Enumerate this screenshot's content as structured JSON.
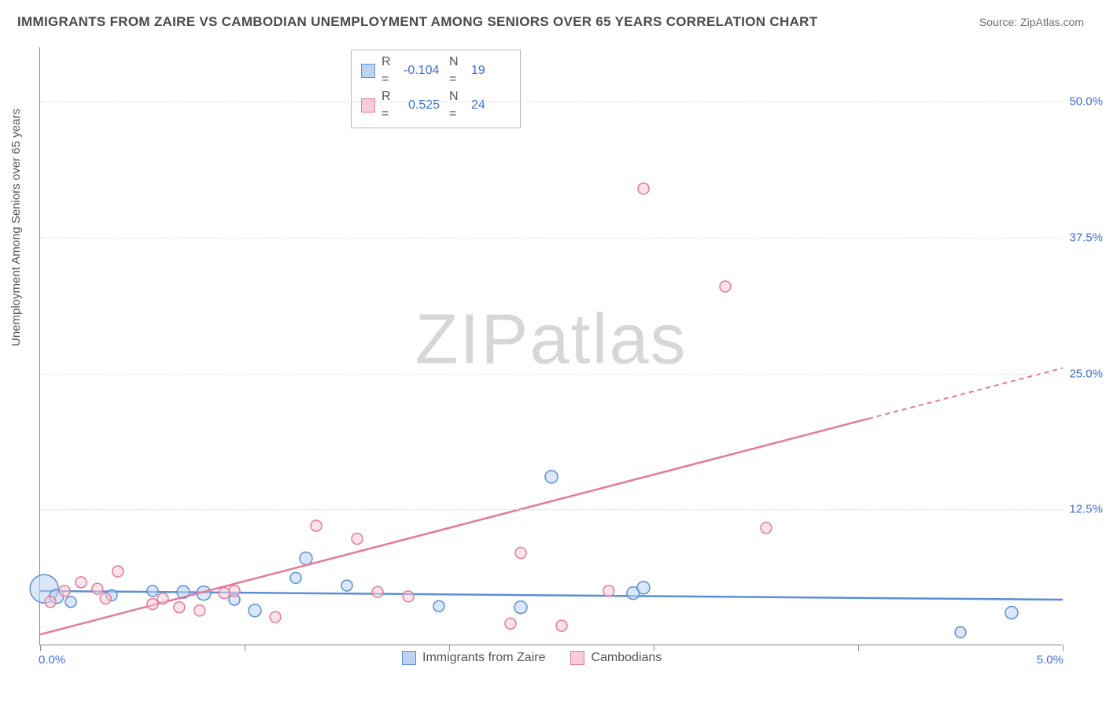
{
  "title": "IMMIGRANTS FROM ZAIRE VS CAMBODIAN UNEMPLOYMENT AMONG SENIORS OVER 65 YEARS CORRELATION CHART",
  "source": "Source: ZipAtlas.com",
  "ylabel": "Unemployment Among Seniors over 65 years",
  "watermark_a": "ZIP",
  "watermark_b": "atlas",
  "watermark_color": "#d7d7d7",
  "chart": {
    "type": "scatter",
    "background_color": "#ffffff",
    "grid_color": "#dcdcdc",
    "axis_color": "#888888",
    "text_color": "#555555",
    "value_color": "#3b6fd6",
    "x_range": [
      0.0,
      5.0
    ],
    "y_range": [
      0.0,
      55.0
    ],
    "x_ticks": [
      0.0,
      1.0,
      2.0,
      3.0,
      4.0,
      5.0
    ],
    "x_tick_label_left": "0.0%",
    "x_tick_label_right": "5.0%",
    "y_gridlines": [
      12.5,
      25.0,
      37.5,
      50.0
    ],
    "y_tick_labels": [
      "12.5%",
      "25.0%",
      "37.5%",
      "50.0%"
    ],
    "series": [
      {
        "key": "zaire",
        "label": "Immigrants from Zaire",
        "color_stroke": "#5b8fd6",
        "color_fill": "#bcd4f2",
        "r_stat": "-0.104",
        "n_stat": "19",
        "trend": {
          "x1": 0.0,
          "y1": 5.0,
          "x2": 5.0,
          "y2": 4.2,
          "solid_until_x": 5.0
        },
        "points": [
          {
            "x": 0.02,
            "y": 5.2,
            "r": 18
          },
          {
            "x": 0.08,
            "y": 4.5,
            "r": 9
          },
          {
            "x": 0.15,
            "y": 4.0,
            "r": 7
          },
          {
            "x": 0.35,
            "y": 4.6,
            "r": 7
          },
          {
            "x": 0.7,
            "y": 4.9,
            "r": 8
          },
          {
            "x": 0.8,
            "y": 4.8,
            "r": 9
          },
          {
            "x": 0.95,
            "y": 4.2,
            "r": 7
          },
          {
            "x": 1.05,
            "y": 3.2,
            "r": 8
          },
          {
            "x": 1.25,
            "y": 6.2,
            "r": 7
          },
          {
            "x": 1.3,
            "y": 8.0,
            "r": 8
          },
          {
            "x": 1.5,
            "y": 5.5,
            "r": 7
          },
          {
            "x": 1.95,
            "y": 3.6,
            "r": 7
          },
          {
            "x": 2.35,
            "y": 3.5,
            "r": 8
          },
          {
            "x": 2.5,
            "y": 15.5,
            "r": 8
          },
          {
            "x": 2.9,
            "y": 4.8,
            "r": 8
          },
          {
            "x": 2.95,
            "y": 5.3,
            "r": 8
          },
          {
            "x": 4.5,
            "y": 1.2,
            "r": 7
          },
          {
            "x": 4.75,
            "y": 3.0,
            "r": 8
          },
          {
            "x": 0.55,
            "y": 5.0,
            "r": 7
          }
        ]
      },
      {
        "key": "cambodians",
        "label": "Cambodians",
        "color_stroke": "#e47a96",
        "color_fill": "#f6cdd8",
        "r_stat": "0.525",
        "n_stat": "24",
        "trend": {
          "x1": 0.0,
          "y1": 1.0,
          "x2": 5.0,
          "y2": 25.5,
          "solid_until_x": 4.05
        },
        "points": [
          {
            "x": 0.05,
            "y": 4.0,
            "r": 7
          },
          {
            "x": 0.12,
            "y": 5.0,
            "r": 7
          },
          {
            "x": 0.2,
            "y": 5.8,
            "r": 7
          },
          {
            "x": 0.28,
            "y": 5.2,
            "r": 7
          },
          {
            "x": 0.32,
            "y": 4.3,
            "r": 7
          },
          {
            "x": 0.38,
            "y": 6.8,
            "r": 7
          },
          {
            "x": 0.55,
            "y": 3.8,
            "r": 7
          },
          {
            "x": 0.6,
            "y": 4.3,
            "r": 7
          },
          {
            "x": 0.68,
            "y": 3.5,
            "r": 7
          },
          {
            "x": 0.78,
            "y": 3.2,
            "r": 7
          },
          {
            "x": 0.9,
            "y": 4.8,
            "r": 7
          },
          {
            "x": 0.95,
            "y": 5.0,
            "r": 7
          },
          {
            "x": 1.15,
            "y": 2.6,
            "r": 7
          },
          {
            "x": 1.35,
            "y": 11.0,
            "r": 7
          },
          {
            "x": 1.55,
            "y": 9.8,
            "r": 7
          },
          {
            "x": 1.65,
            "y": 4.9,
            "r": 7
          },
          {
            "x": 1.8,
            "y": 4.5,
            "r": 7
          },
          {
            "x": 2.3,
            "y": 2.0,
            "r": 7
          },
          {
            "x": 2.35,
            "y": 8.5,
            "r": 7
          },
          {
            "x": 2.55,
            "y": 1.8,
            "r": 7
          },
          {
            "x": 2.78,
            "y": 5.0,
            "r": 7
          },
          {
            "x": 2.95,
            "y": 42.0,
            "r": 7
          },
          {
            "x": 3.35,
            "y": 33.0,
            "r": 7
          },
          {
            "x": 3.55,
            "y": 10.8,
            "r": 7
          }
        ]
      }
    ],
    "legend_top": {
      "r_label": "R =",
      "n_label": "N ="
    }
  }
}
